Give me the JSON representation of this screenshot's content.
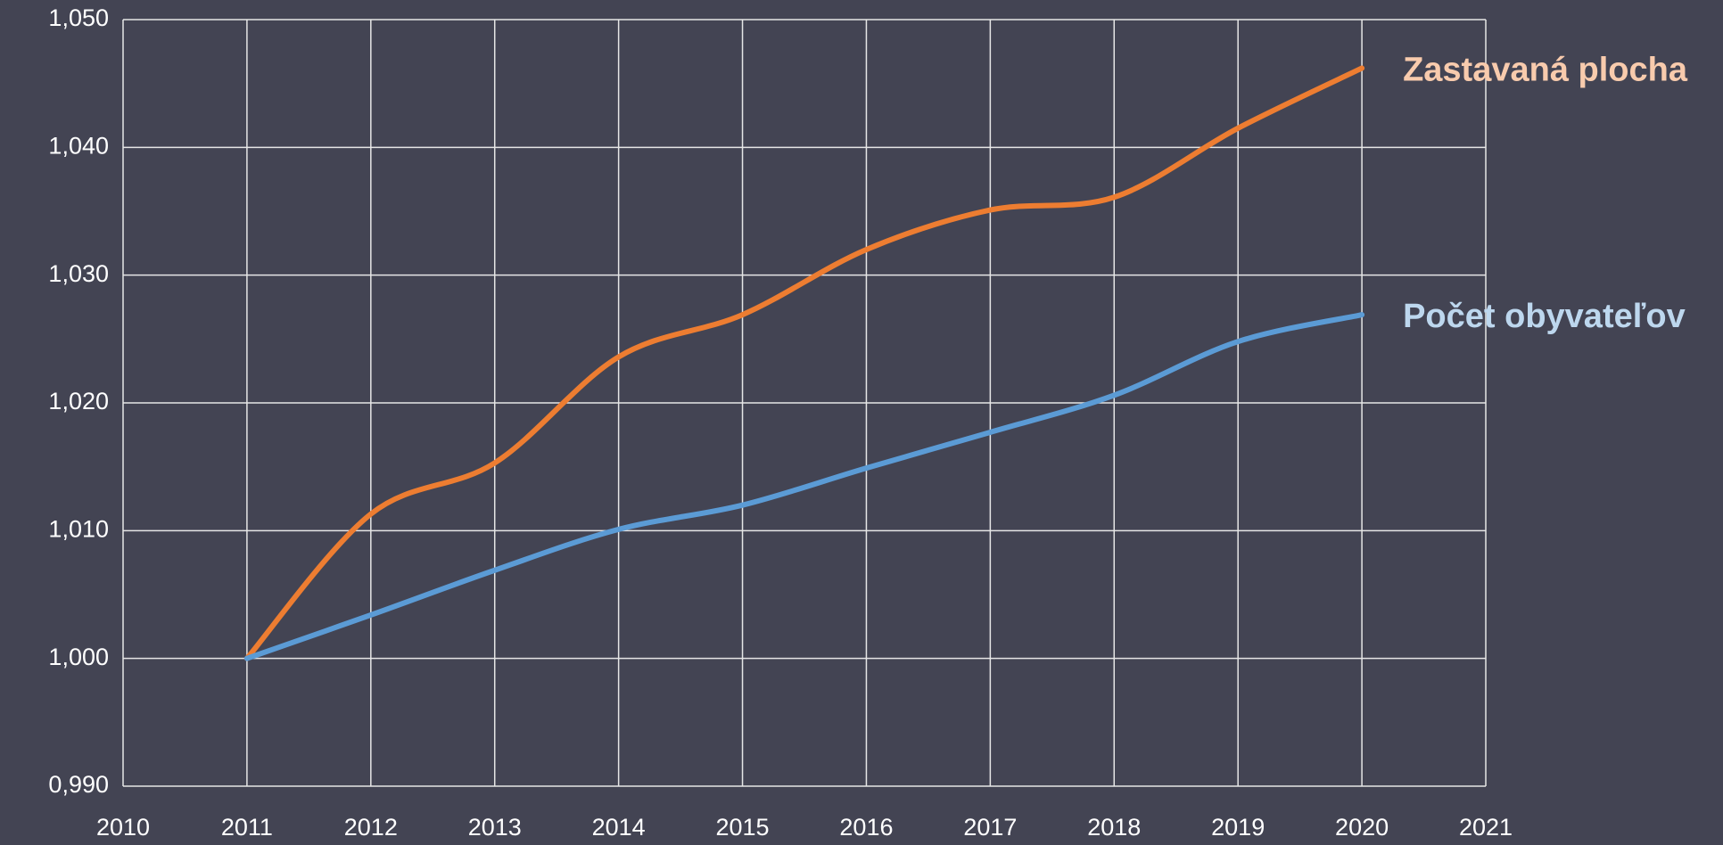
{
  "chart_data": {
    "type": "line",
    "x": [
      2011,
      2012,
      2013,
      2014,
      2015,
      2016,
      2017,
      2018,
      2019,
      2020
    ],
    "series": [
      {
        "name": "Zastavaná plocha",
        "color": "#ed7d31",
        "label_color": "#f8cbad",
        "values": [
          1.0,
          1.0113,
          1.0153,
          1.0236,
          1.0269,
          1.032,
          1.0351,
          1.0361,
          1.0415,
          1.0462
        ]
      },
      {
        "name": "Počet obyvateľov",
        "color": "#5b9bd5",
        "label_color": "#bdd7ee",
        "values": [
          1.0,
          1.0034,
          1.0069,
          1.0101,
          1.012,
          1.0149,
          1.0177,
          1.0206,
          1.0248,
          1.0269
        ]
      }
    ],
    "xlim": [
      2010,
      2021
    ],
    "xticks": [
      2010,
      2011,
      2012,
      2013,
      2014,
      2015,
      2016,
      2017,
      2018,
      2019,
      2020,
      2021
    ],
    "ylim": [
      0.99,
      1.05
    ],
    "yticks": [
      {
        "value": 0.99,
        "label": "0,990"
      },
      {
        "value": 1.0,
        "label": "1,000"
      },
      {
        "value": 1.01,
        "label": "1,010"
      },
      {
        "value": 1.02,
        "label": "1,020"
      },
      {
        "value": 1.03,
        "label": "1,030"
      },
      {
        "value": 1.04,
        "label": "1,040"
      },
      {
        "value": 1.05,
        "label": "1,050"
      }
    ],
    "grid": true,
    "smooth": true
  }
}
